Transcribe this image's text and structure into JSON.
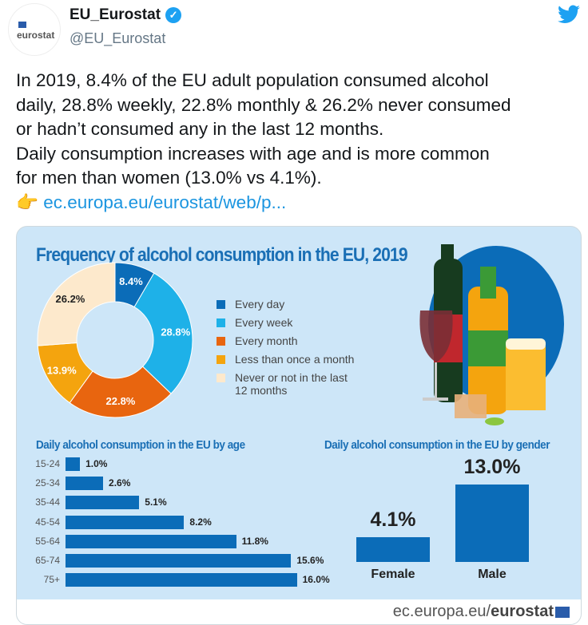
{
  "tweet": {
    "display_name": "EU_Eurostat",
    "handle": "@EU_Eurostat",
    "avatar_text": "eurostat",
    "text_lines": [
      "In 2019, 8.4% of the EU adult population consumed alcohol",
      "daily, 28.8% weekly, 22.8% monthly & 26.2% never consumed",
      "or hadn’t consumed any in the last 12 months.",
      "Daily consumption increases with age and is more common",
      "for men than women (13.0% vs 4.1%)."
    ],
    "pointer_emoji": "👉",
    "link": "ec.europa.eu/eurostat/web/p..."
  },
  "icons": {
    "verified": "verified-badge-icon",
    "bird": "twitter-bird-icon"
  },
  "colors": {
    "link": "#1b95e0",
    "brand_blue": "#1a6fb5",
    "card_bg": "#cde6f8"
  },
  "infographic": {
    "title": "Frequency of alcohol consumption in the EU, 2019",
    "age_title": "Daily alcohol consumption in the EU by age",
    "gender_title": "Daily alcohol consumption in the EU by gender",
    "footer_prefix": "ec.europa.eu/",
    "footer_brand": "eurostat"
  },
  "chart_data": [
    {
      "type": "pie",
      "title": "Frequency of alcohol consumption in the EU, 2019",
      "slices": [
        {
          "label": "Every day",
          "value": 8.4,
          "display": "8.4%",
          "color": "#0b6cb8"
        },
        {
          "label": "Every week",
          "value": 28.8,
          "display": "28.8%",
          "color": "#1eb1e8"
        },
        {
          "label": "Every month",
          "value": 22.8,
          "display": "22.8%",
          "color": "#e8650f"
        },
        {
          "label": "Less than once a month",
          "value": 13.9,
          "display": "13.9%",
          "color": "#f4a40e"
        },
        {
          "label": "Never or not in the last 12 months",
          "value": 26.2,
          "display": "26.2%",
          "color": "#fde9cc"
        }
      ]
    },
    {
      "type": "bar",
      "orientation": "horizontal",
      "title": "Daily alcohol consumption in the EU by age",
      "categories": [
        "15-24",
        "25-34",
        "35-44",
        "45-54",
        "55-64",
        "65-74",
        "75+"
      ],
      "values": [
        1.0,
        2.6,
        5.1,
        8.2,
        11.8,
        15.6,
        16.0
      ],
      "labels": [
        "1.0%",
        "2.6%",
        "5.1%",
        "8.2%",
        "11.8%",
        "15.6%",
        "16.0%"
      ]
    },
    {
      "type": "bar",
      "title": "Daily alcohol consumption in the EU by gender",
      "categories": [
        "Female",
        "Male"
      ],
      "values": [
        4.1,
        13.0
      ],
      "labels": [
        "4.1%",
        "13.0%"
      ]
    }
  ]
}
